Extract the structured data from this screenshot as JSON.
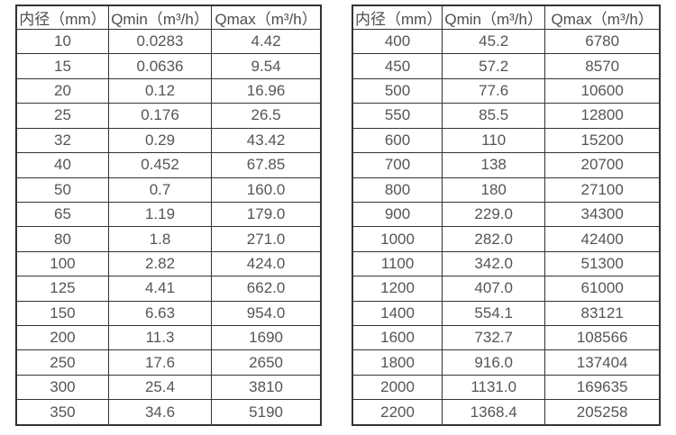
{
  "page": {
    "background_color": "#ffffff",
    "border_color": "#333333",
    "text_color": "#555555"
  },
  "tables": [
    {
      "name": "flow-table-dn10-350",
      "headers": [
        "内径（mm）",
        "Qmin（m³/h）",
        "Qmax（m³/h）"
      ],
      "rows": [
        [
          "10",
          "0.0283",
          "4.42"
        ],
        [
          "15",
          "0.0636",
          "9.54"
        ],
        [
          "20",
          "0.12",
          "16.96"
        ],
        [
          "25",
          "0.176",
          "26.5"
        ],
        [
          "32",
          "0.29",
          "43.42"
        ],
        [
          "40",
          "0.452",
          "67.85"
        ],
        [
          "50",
          "0.7",
          "160.0"
        ],
        [
          "65",
          "1.19",
          "179.0"
        ],
        [
          "80",
          "1.8",
          "271.0"
        ],
        [
          "100",
          "2.82",
          "424.0"
        ],
        [
          "125",
          "4.41",
          "662.0"
        ],
        [
          "150",
          "6.63",
          "954.0"
        ],
        [
          "200",
          "11.3",
          "1690"
        ],
        [
          "250",
          "17.6",
          "2650"
        ],
        [
          "300",
          "25.4",
          "3810"
        ],
        [
          "350",
          "34.6",
          "5190"
        ]
      ]
    },
    {
      "name": "flow-table-dn400-2200",
      "headers": [
        "内径（mm）",
        "Qmin（m³/h）",
        "Qmax（m³/h）"
      ],
      "rows": [
        [
          "400",
          "45.2",
          "6780"
        ],
        [
          "450",
          "57.2",
          "8570"
        ],
        [
          "500",
          "77.6",
          "10600"
        ],
        [
          "550",
          "85.5",
          "12800"
        ],
        [
          "600",
          "110",
          "15200"
        ],
        [
          "700",
          "138",
          "20700"
        ],
        [
          "800",
          "180",
          "27100"
        ],
        [
          "900",
          "229.0",
          "34300"
        ],
        [
          "1000",
          "282.0",
          "42400"
        ],
        [
          "1100",
          "342.0",
          "51300"
        ],
        [
          "1200",
          "407.0",
          "61000"
        ],
        [
          "1400",
          "554.1",
          "83121"
        ],
        [
          "1600",
          "732.7",
          "108566"
        ],
        [
          "1800",
          "916.0",
          "137404"
        ],
        [
          "2000",
          "1131.0",
          "169635"
        ],
        [
          "2200",
          "1368.4",
          "205258"
        ]
      ]
    }
  ]
}
